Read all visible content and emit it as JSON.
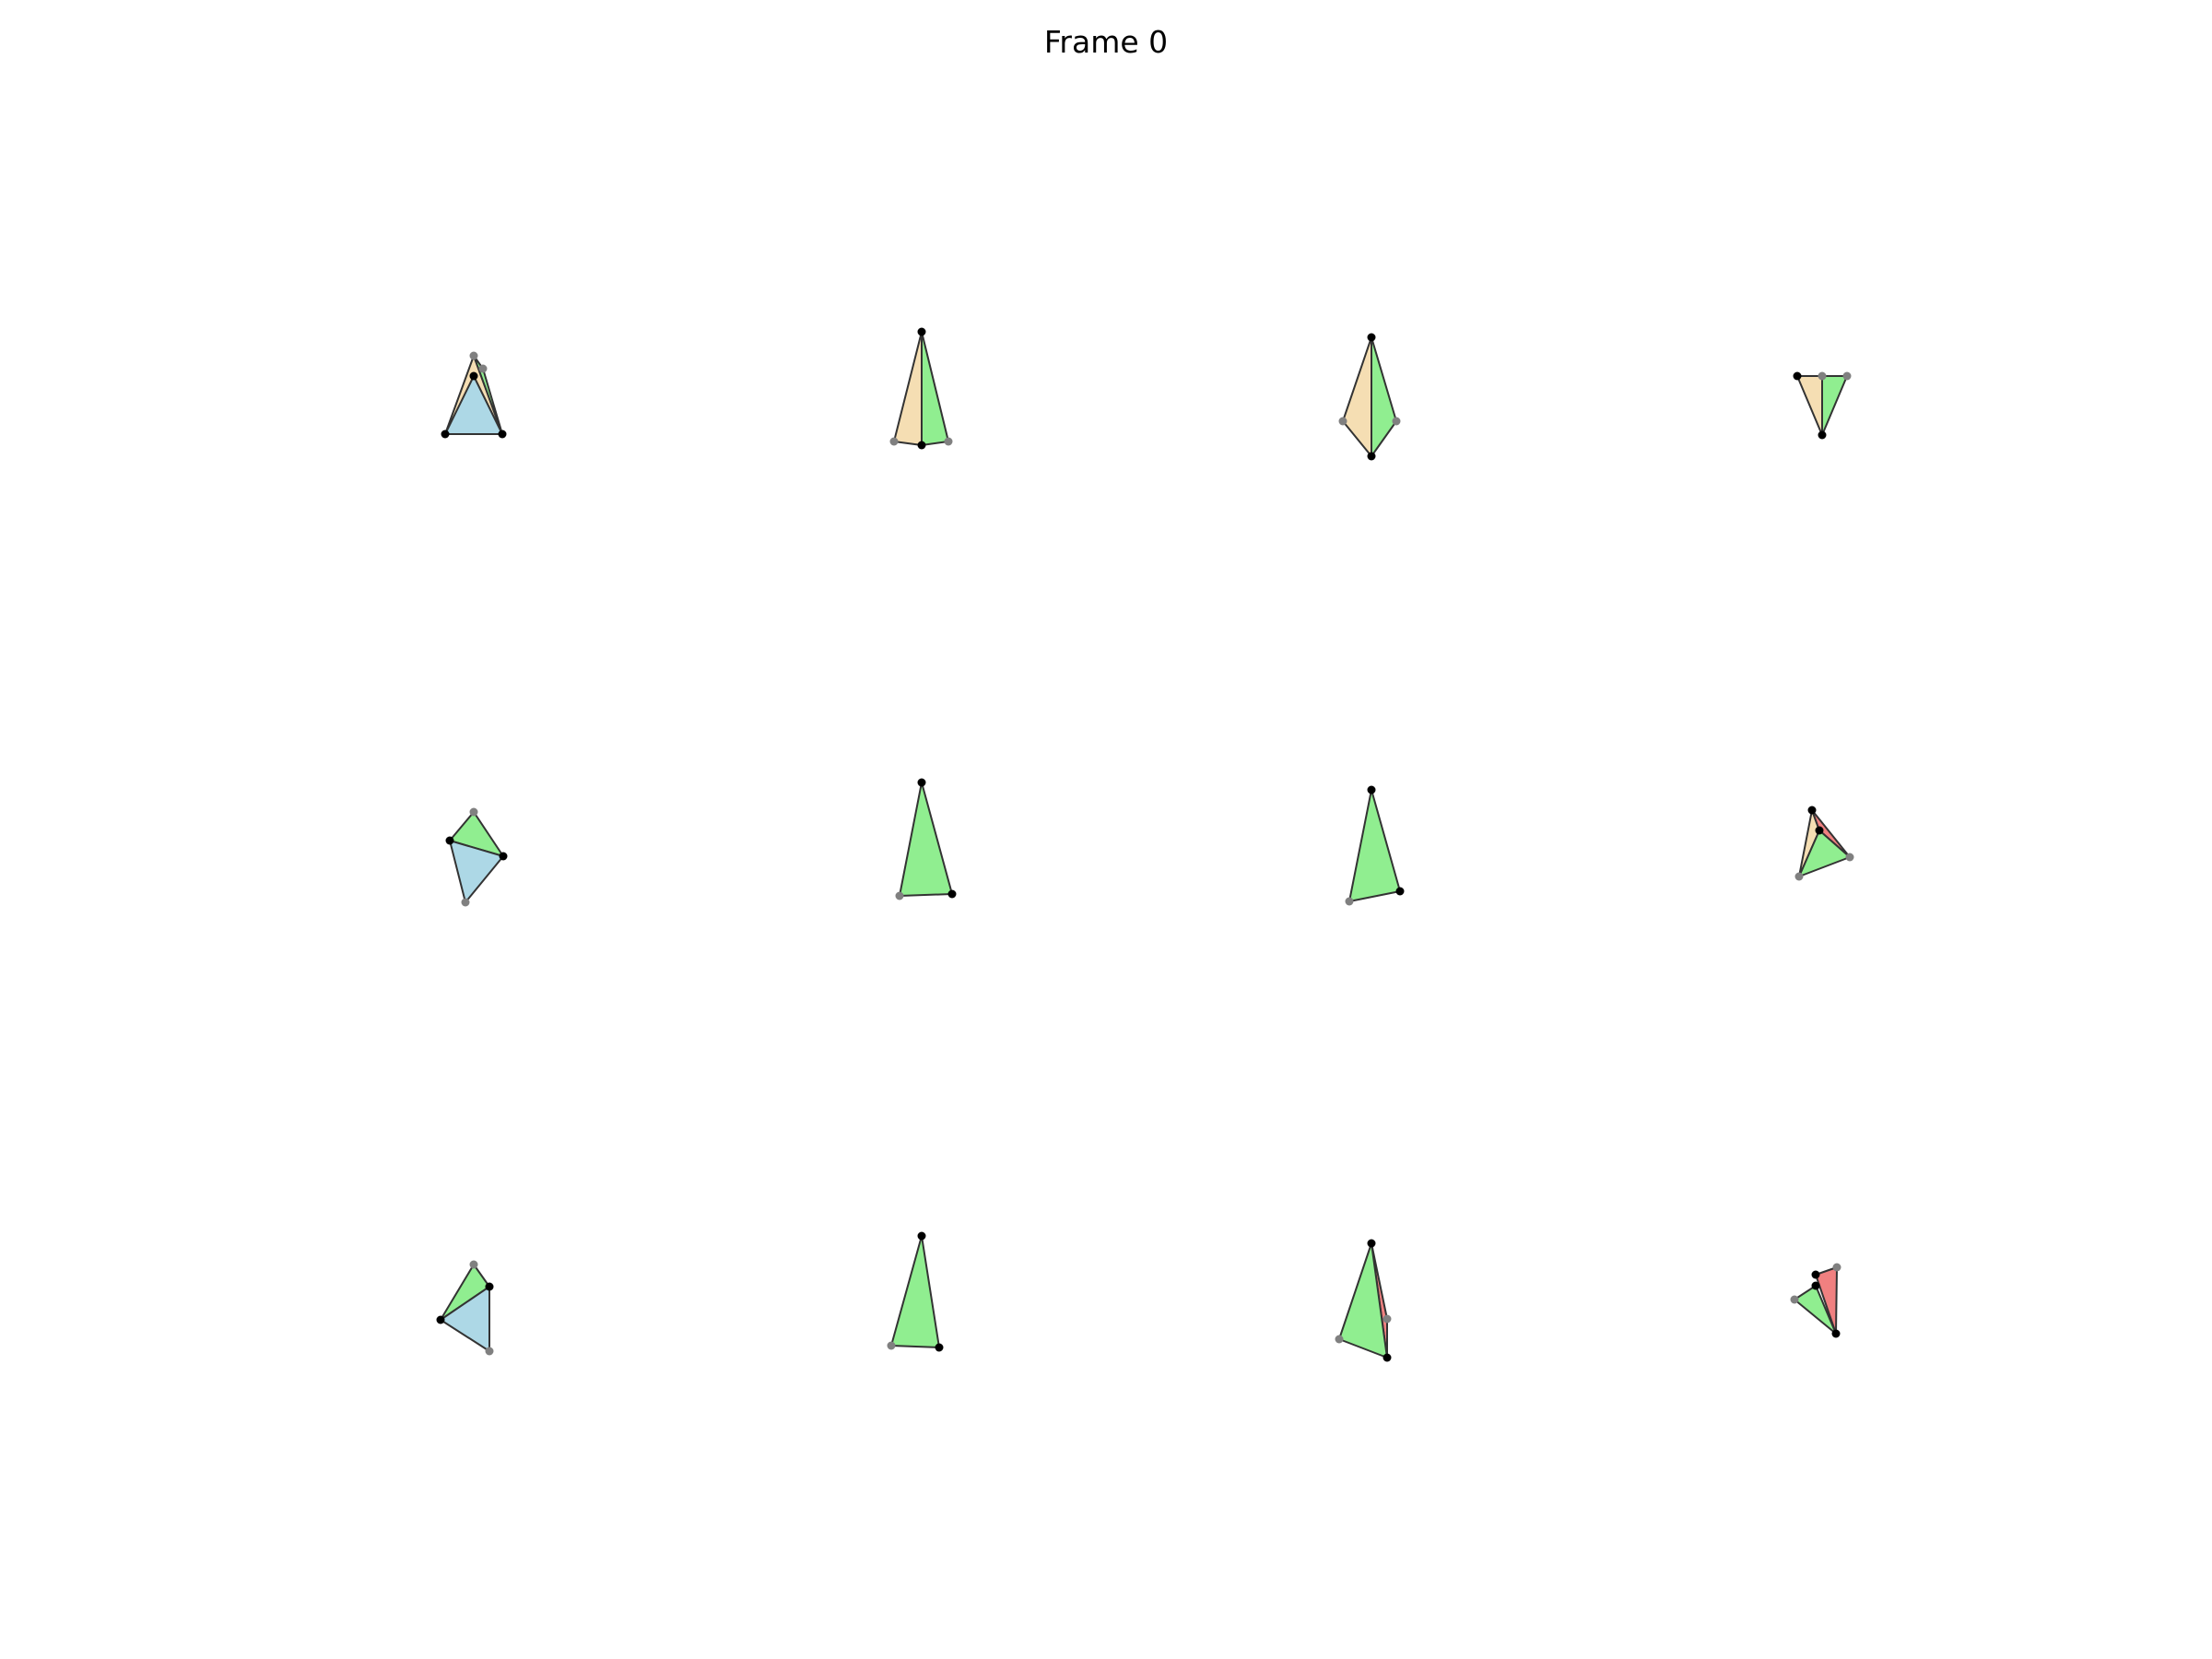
{
  "figure": {
    "title": "Frame 0",
    "colors": {
      "blue_face": "#add8e6",
      "green_face": "#90ee90",
      "tan_face": "#f5deb3",
      "red_face": "#f08080",
      "edge": "#333333",
      "vertex": "#000000",
      "hidden_vertex": "#808080",
      "background": "#ffffff"
    },
    "grid": {
      "rows": 3,
      "cols": 4
    },
    "panels": [
      {
        "row": 1,
        "col": 1,
        "faces": [
          "tan-face",
          "green-face",
          "blue-face"
        ]
      },
      {
        "row": 1,
        "col": 2,
        "faces": [
          "tan-face",
          "green-face"
        ]
      },
      {
        "row": 1,
        "col": 3,
        "faces": [
          "tan-face",
          "green-face"
        ]
      },
      {
        "row": 1,
        "col": 4,
        "faces": [
          "tan-face",
          "green-face"
        ]
      },
      {
        "row": 2,
        "col": 1,
        "faces": [
          "green-face",
          "blue-face"
        ]
      },
      {
        "row": 2,
        "col": 2,
        "faces": [
          "green-face"
        ]
      },
      {
        "row": 2,
        "col": 3,
        "faces": [
          "green-face"
        ]
      },
      {
        "row": 2,
        "col": 4,
        "faces": [
          "tan-face",
          "red-face",
          "green-face"
        ]
      },
      {
        "row": 3,
        "col": 1,
        "faces": [
          "green-face",
          "blue-face"
        ]
      },
      {
        "row": 3,
        "col": 2,
        "faces": [
          "green-face"
        ]
      },
      {
        "row": 3,
        "col": 3,
        "faces": [
          "red-face",
          "green-face"
        ]
      },
      {
        "row": 3,
        "col": 4,
        "faces": [
          "red-face",
          "green-face"
        ]
      }
    ]
  }
}
